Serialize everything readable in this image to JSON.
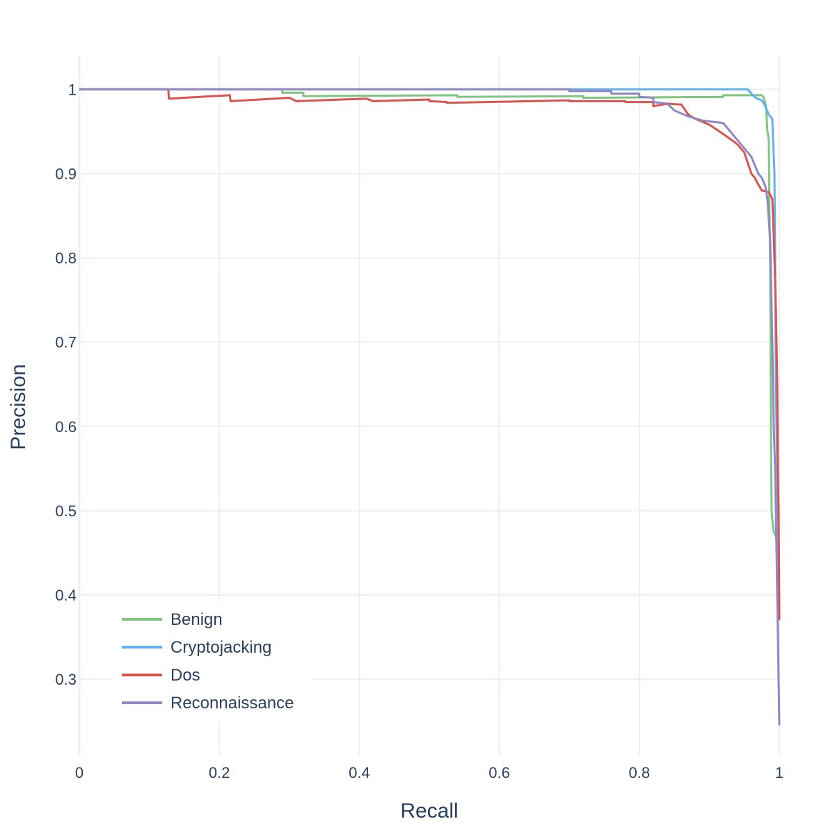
{
  "chart_data": {
    "type": "line",
    "title": "",
    "xlabel": "Recall",
    "ylabel": "Precision",
    "xlim": [
      0,
      1
    ],
    "ylim": [
      0.21,
      1.04
    ],
    "grid": true,
    "legend_position": "bottom-left",
    "x_ticks": [
      0,
      0.2,
      0.4,
      0.6,
      0.8,
      1
    ],
    "x_tick_labels": [
      "0",
      "0.2",
      "0.4",
      "0.6",
      "0.8",
      "1"
    ],
    "y_ticks": [
      0.3,
      0.4,
      0.5,
      0.6,
      0.7,
      0.8,
      0.9,
      1
    ],
    "y_tick_labels": [
      "0.3",
      "0.4",
      "0.5",
      "0.6",
      "0.7",
      "0.8",
      "0.9",
      "1"
    ],
    "series": [
      {
        "name": "Benign",
        "color": "#7fc47f",
        "x": [
          0,
          0.29,
          0.29,
          0.32,
          0.32,
          0.54,
          0.54,
          0.72,
          0.72,
          0.92,
          0.92,
          0.975,
          0.978,
          0.981,
          0.983,
          0.985,
          0.986,
          0.987,
          0.988,
          0.989,
          0.99,
          0.992,
          0.995,
          1
        ],
        "y": [
          1,
          1,
          0.996,
          0.996,
          0.992,
          0.993,
          0.991,
          0.992,
          0.99,
          0.991,
          0.993,
          0.993,
          0.99,
          0.98,
          0.95,
          0.94,
          0.85,
          0.79,
          0.6,
          0.5,
          0.49,
          0.475,
          0.47,
          0.45
        ]
      },
      {
        "name": "Cryptojacking",
        "color": "#62b0f0",
        "x": [
          0,
          0.955,
          0.96,
          0.966,
          0.975,
          0.98,
          0.985,
          0.99,
          0.993,
          0.994,
          0.995,
          0.996,
          0.997,
          0.998,
          0.999,
          1
        ],
        "y": [
          1,
          1,
          0.995,
          0.99,
          0.987,
          0.98,
          0.97,
          0.965,
          0.9,
          0.8,
          0.65,
          0.6,
          0.55,
          0.5,
          0.45,
          0.38
        ]
      },
      {
        "name": "Dos",
        "color": "#d9534f",
        "x": [
          0,
          0.127,
          0.128,
          0.15,
          0.215,
          0.216,
          0.3,
          0.31,
          0.41,
          0.42,
          0.5,
          0.5,
          0.525,
          0.525,
          0.7,
          0.7,
          0.78,
          0.78,
          0.82,
          0.82,
          0.84,
          0.86,
          0.87,
          0.88,
          0.9,
          0.92,
          0.94,
          0.95,
          0.96,
          0.965,
          0.968,
          0.975,
          0.985,
          0.99,
          0.991,
          0.993,
          0.995,
          0.997,
          0.998,
          0.999,
          1
        ],
        "y": [
          1,
          1,
          0.989,
          0.99,
          0.993,
          0.986,
          0.99,
          0.986,
          0.989,
          0.986,
          0.988,
          0.986,
          0.985,
          0.984,
          0.987,
          0.986,
          0.986,
          0.985,
          0.985,
          0.98,
          0.983,
          0.982,
          0.97,
          0.965,
          0.958,
          0.947,
          0.935,
          0.925,
          0.9,
          0.895,
          0.89,
          0.88,
          0.878,
          0.87,
          0.85,
          0.8,
          0.74,
          0.65,
          0.55,
          0.5,
          0.37
        ]
      },
      {
        "name": "Reconnaissance",
        "color": "#8e87c4",
        "x": [
          0,
          0.7,
          0.7,
          0.76,
          0.76,
          0.8,
          0.8,
          0.82,
          0.82,
          0.84,
          0.85,
          0.87,
          0.89,
          0.92,
          0.94,
          0.95,
          0.96,
          0.965,
          0.97,
          0.975,
          0.98,
          0.983,
          0.987,
          0.99,
          0.992,
          0.994,
          0.996,
          0.998,
          1
        ],
        "y": [
          1,
          1,
          0.998,
          0.998,
          0.995,
          0.995,
          0.991,
          0.99,
          0.985,
          0.983,
          0.975,
          0.968,
          0.963,
          0.96,
          0.94,
          0.93,
          0.92,
          0.91,
          0.9,
          0.895,
          0.885,
          0.87,
          0.82,
          0.7,
          0.6,
          0.55,
          0.45,
          0.35,
          0.245
        ]
      }
    ]
  }
}
